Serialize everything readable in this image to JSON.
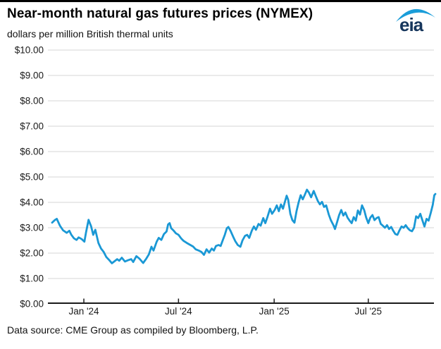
{
  "header": {
    "title": "Near-month natural gas futures prices (NYMEX)",
    "subtitle": "dollars per million British thermal units",
    "logo_text": "eia"
  },
  "footer": {
    "source": "Data source: CME Group as compiled by Bloomberg, L.P."
  },
  "colors": {
    "line": "#1a98d5",
    "grid": "#d4d4d4",
    "axis": "#1a1a1a",
    "text": "#1a1a1a",
    "logo_navy": "#16365c",
    "logo_swoosh": "#1a9dd9"
  },
  "chart_data": {
    "type": "line",
    "title": "Near-month natural gas futures prices (NYMEX)",
    "xlabel": "",
    "ylabel": "dollars per million British thermal units",
    "ylim": [
      0,
      10
    ],
    "ytick_step": 1,
    "grid": true,
    "legend_position": "none",
    "ytick_labels": [
      "$0.00",
      "$1.00",
      "$2.00",
      "$3.00",
      "$4.00",
      "$5.00",
      "$6.00",
      "$7.00",
      "$8.00",
      "$9.00",
      "$10.00"
    ],
    "xticks": [
      {
        "date": "2024-01-01",
        "label": "Jan '24"
      },
      {
        "date": "2024-07-01",
        "label": "Jul '24"
      },
      {
        "date": "2025-01-01",
        "label": "Jan '25"
      },
      {
        "date": "2025-07-01",
        "label": "Jul '25"
      }
    ],
    "x_range": [
      "2023-11-01",
      "2025-11-07"
    ],
    "series": [
      {
        "name": "NYMEX near-month natural gas futures price",
        "points": [
          [
            "2023-11-01",
            3.2
          ],
          [
            "2023-11-06",
            3.3
          ],
          [
            "2023-11-10",
            3.35
          ],
          [
            "2023-11-16",
            3.08
          ],
          [
            "2023-11-22",
            2.9
          ],
          [
            "2023-11-29",
            2.8
          ],
          [
            "2023-12-04",
            2.88
          ],
          [
            "2023-12-08",
            2.72
          ],
          [
            "2023-12-13",
            2.58
          ],
          [
            "2023-12-18",
            2.52
          ],
          [
            "2023-12-22",
            2.62
          ],
          [
            "2023-12-28",
            2.55
          ],
          [
            "2024-01-02",
            2.45
          ],
          [
            "2024-01-05",
            2.8
          ],
          [
            "2024-01-10",
            3.31
          ],
          [
            "2024-01-15",
            3.05
          ],
          [
            "2024-01-19",
            2.72
          ],
          [
            "2024-01-23",
            2.92
          ],
          [
            "2024-01-29",
            2.4
          ],
          [
            "2024-02-03",
            2.18
          ],
          [
            "2024-02-08",
            2.05
          ],
          [
            "2024-02-13",
            1.85
          ],
          [
            "2024-02-19",
            1.72
          ],
          [
            "2024-02-24",
            1.6
          ],
          [
            "2024-02-29",
            1.68
          ],
          [
            "2024-03-05",
            1.76
          ],
          [
            "2024-03-09",
            1.7
          ],
          [
            "2024-03-14",
            1.82
          ],
          [
            "2024-03-20",
            1.67
          ],
          [
            "2024-03-26",
            1.72
          ],
          [
            "2024-04-01",
            1.76
          ],
          [
            "2024-04-05",
            1.65
          ],
          [
            "2024-04-11",
            1.88
          ],
          [
            "2024-04-17",
            1.78
          ],
          [
            "2024-04-24",
            1.61
          ],
          [
            "2024-04-30",
            1.78
          ],
          [
            "2024-05-05",
            1.95
          ],
          [
            "2024-05-10",
            2.25
          ],
          [
            "2024-05-14",
            2.1
          ],
          [
            "2024-05-20",
            2.45
          ],
          [
            "2024-05-24",
            2.6
          ],
          [
            "2024-05-29",
            2.52
          ],
          [
            "2024-06-03",
            2.75
          ],
          [
            "2024-06-08",
            2.85
          ],
          [
            "2024-06-11",
            3.13
          ],
          [
            "2024-06-14",
            3.18
          ],
          [
            "2024-06-17",
            2.98
          ],
          [
            "2024-06-21",
            2.9
          ],
          [
            "2024-06-26",
            2.78
          ],
          [
            "2024-07-01",
            2.72
          ],
          [
            "2024-07-06",
            2.58
          ],
          [
            "2024-07-11",
            2.48
          ],
          [
            "2024-07-17",
            2.4
          ],
          [
            "2024-07-23",
            2.33
          ],
          [
            "2024-07-29",
            2.26
          ],
          [
            "2024-08-03",
            2.15
          ],
          [
            "2024-08-09",
            2.1
          ],
          [
            "2024-08-14",
            2.05
          ],
          [
            "2024-08-19",
            1.93
          ],
          [
            "2024-08-24",
            2.15
          ],
          [
            "2024-08-29",
            2.02
          ],
          [
            "2024-09-03",
            2.18
          ],
          [
            "2024-09-07",
            2.1
          ],
          [
            "2024-09-11",
            2.28
          ],
          [
            "2024-09-16",
            2.32
          ],
          [
            "2024-09-20",
            2.28
          ],
          [
            "2024-09-24",
            2.5
          ],
          [
            "2024-09-28",
            2.72
          ],
          [
            "2024-10-02",
            2.98
          ],
          [
            "2024-10-05",
            3.03
          ],
          [
            "2024-10-09",
            2.88
          ],
          [
            "2024-10-14",
            2.65
          ],
          [
            "2024-10-18",
            2.48
          ],
          [
            "2024-10-23",
            2.32
          ],
          [
            "2024-10-28",
            2.25
          ],
          [
            "2024-11-01",
            2.5
          ],
          [
            "2024-11-06",
            2.68
          ],
          [
            "2024-11-10",
            2.72
          ],
          [
            "2024-11-14",
            2.6
          ],
          [
            "2024-11-19",
            2.88
          ],
          [
            "2024-11-23",
            3.05
          ],
          [
            "2024-11-27",
            2.92
          ],
          [
            "2024-12-02",
            3.15
          ],
          [
            "2024-12-06",
            3.08
          ],
          [
            "2024-12-11",
            3.38
          ],
          [
            "2024-12-15",
            3.18
          ],
          [
            "2024-12-19",
            3.42
          ],
          [
            "2024-12-24",
            3.75
          ],
          [
            "2024-12-28",
            3.55
          ],
          [
            "2025-01-02",
            3.7
          ],
          [
            "2025-01-06",
            3.88
          ],
          [
            "2025-01-10",
            3.65
          ],
          [
            "2025-01-14",
            3.92
          ],
          [
            "2025-01-18",
            3.75
          ],
          [
            "2025-01-22",
            4.05
          ],
          [
            "2025-01-25",
            4.26
          ],
          [
            "2025-01-28",
            4.1
          ],
          [
            "2025-02-01",
            3.55
          ],
          [
            "2025-02-05",
            3.3
          ],
          [
            "2025-02-09",
            3.2
          ],
          [
            "2025-02-13",
            3.65
          ],
          [
            "2025-02-17",
            4.0
          ],
          [
            "2025-02-21",
            4.28
          ],
          [
            "2025-02-25",
            4.12
          ],
          [
            "2025-03-01",
            4.3
          ],
          [
            "2025-03-05",
            4.5
          ],
          [
            "2025-03-09",
            4.38
          ],
          [
            "2025-03-13",
            4.2
          ],
          [
            "2025-03-18",
            4.45
          ],
          [
            "2025-03-22",
            4.25
          ],
          [
            "2025-03-26",
            4.05
          ],
          [
            "2025-03-30",
            3.92
          ],
          [
            "2025-04-03",
            4.02
          ],
          [
            "2025-04-07",
            3.82
          ],
          [
            "2025-04-11",
            3.88
          ],
          [
            "2025-04-16",
            3.52
          ],
          [
            "2025-04-20",
            3.3
          ],
          [
            "2025-04-25",
            3.1
          ],
          [
            "2025-04-28",
            2.95
          ],
          [
            "2025-05-02",
            3.22
          ],
          [
            "2025-05-06",
            3.5
          ],
          [
            "2025-05-10",
            3.7
          ],
          [
            "2025-05-14",
            3.48
          ],
          [
            "2025-05-18",
            3.6
          ],
          [
            "2025-05-22",
            3.4
          ],
          [
            "2025-05-26",
            3.28
          ],
          [
            "2025-05-30",
            3.18
          ],
          [
            "2025-06-03",
            3.42
          ],
          [
            "2025-06-07",
            3.28
          ],
          [
            "2025-06-11",
            3.68
          ],
          [
            "2025-06-15",
            3.52
          ],
          [
            "2025-06-19",
            3.88
          ],
          [
            "2025-06-23",
            3.7
          ],
          [
            "2025-06-27",
            3.4
          ],
          [
            "2025-07-01",
            3.18
          ],
          [
            "2025-07-05",
            3.4
          ],
          [
            "2025-07-09",
            3.5
          ],
          [
            "2025-07-13",
            3.3
          ],
          [
            "2025-07-17",
            3.38
          ],
          [
            "2025-07-21",
            3.42
          ],
          [
            "2025-07-25",
            3.15
          ],
          [
            "2025-07-29",
            3.08
          ],
          [
            "2025-08-02",
            3.0
          ],
          [
            "2025-08-06",
            3.1
          ],
          [
            "2025-08-10",
            2.95
          ],
          [
            "2025-08-14",
            3.03
          ],
          [
            "2025-08-18",
            2.88
          ],
          [
            "2025-08-22",
            2.75
          ],
          [
            "2025-08-26",
            2.72
          ],
          [
            "2025-08-30",
            2.9
          ],
          [
            "2025-09-03",
            3.05
          ],
          [
            "2025-09-07",
            3.0
          ],
          [
            "2025-09-11",
            3.1
          ],
          [
            "2025-09-15",
            2.98
          ],
          [
            "2025-09-19",
            2.9
          ],
          [
            "2025-09-23",
            2.86
          ],
          [
            "2025-09-27",
            3.0
          ],
          [
            "2025-10-01",
            3.45
          ],
          [
            "2025-10-05",
            3.38
          ],
          [
            "2025-10-09",
            3.55
          ],
          [
            "2025-10-13",
            3.3
          ],
          [
            "2025-10-17",
            3.05
          ],
          [
            "2025-10-21",
            3.35
          ],
          [
            "2025-10-25",
            3.28
          ],
          [
            "2025-10-29",
            3.58
          ],
          [
            "2025-11-02",
            3.9
          ],
          [
            "2025-11-05",
            4.28
          ],
          [
            "2025-11-07",
            4.33
          ]
        ]
      }
    ]
  }
}
